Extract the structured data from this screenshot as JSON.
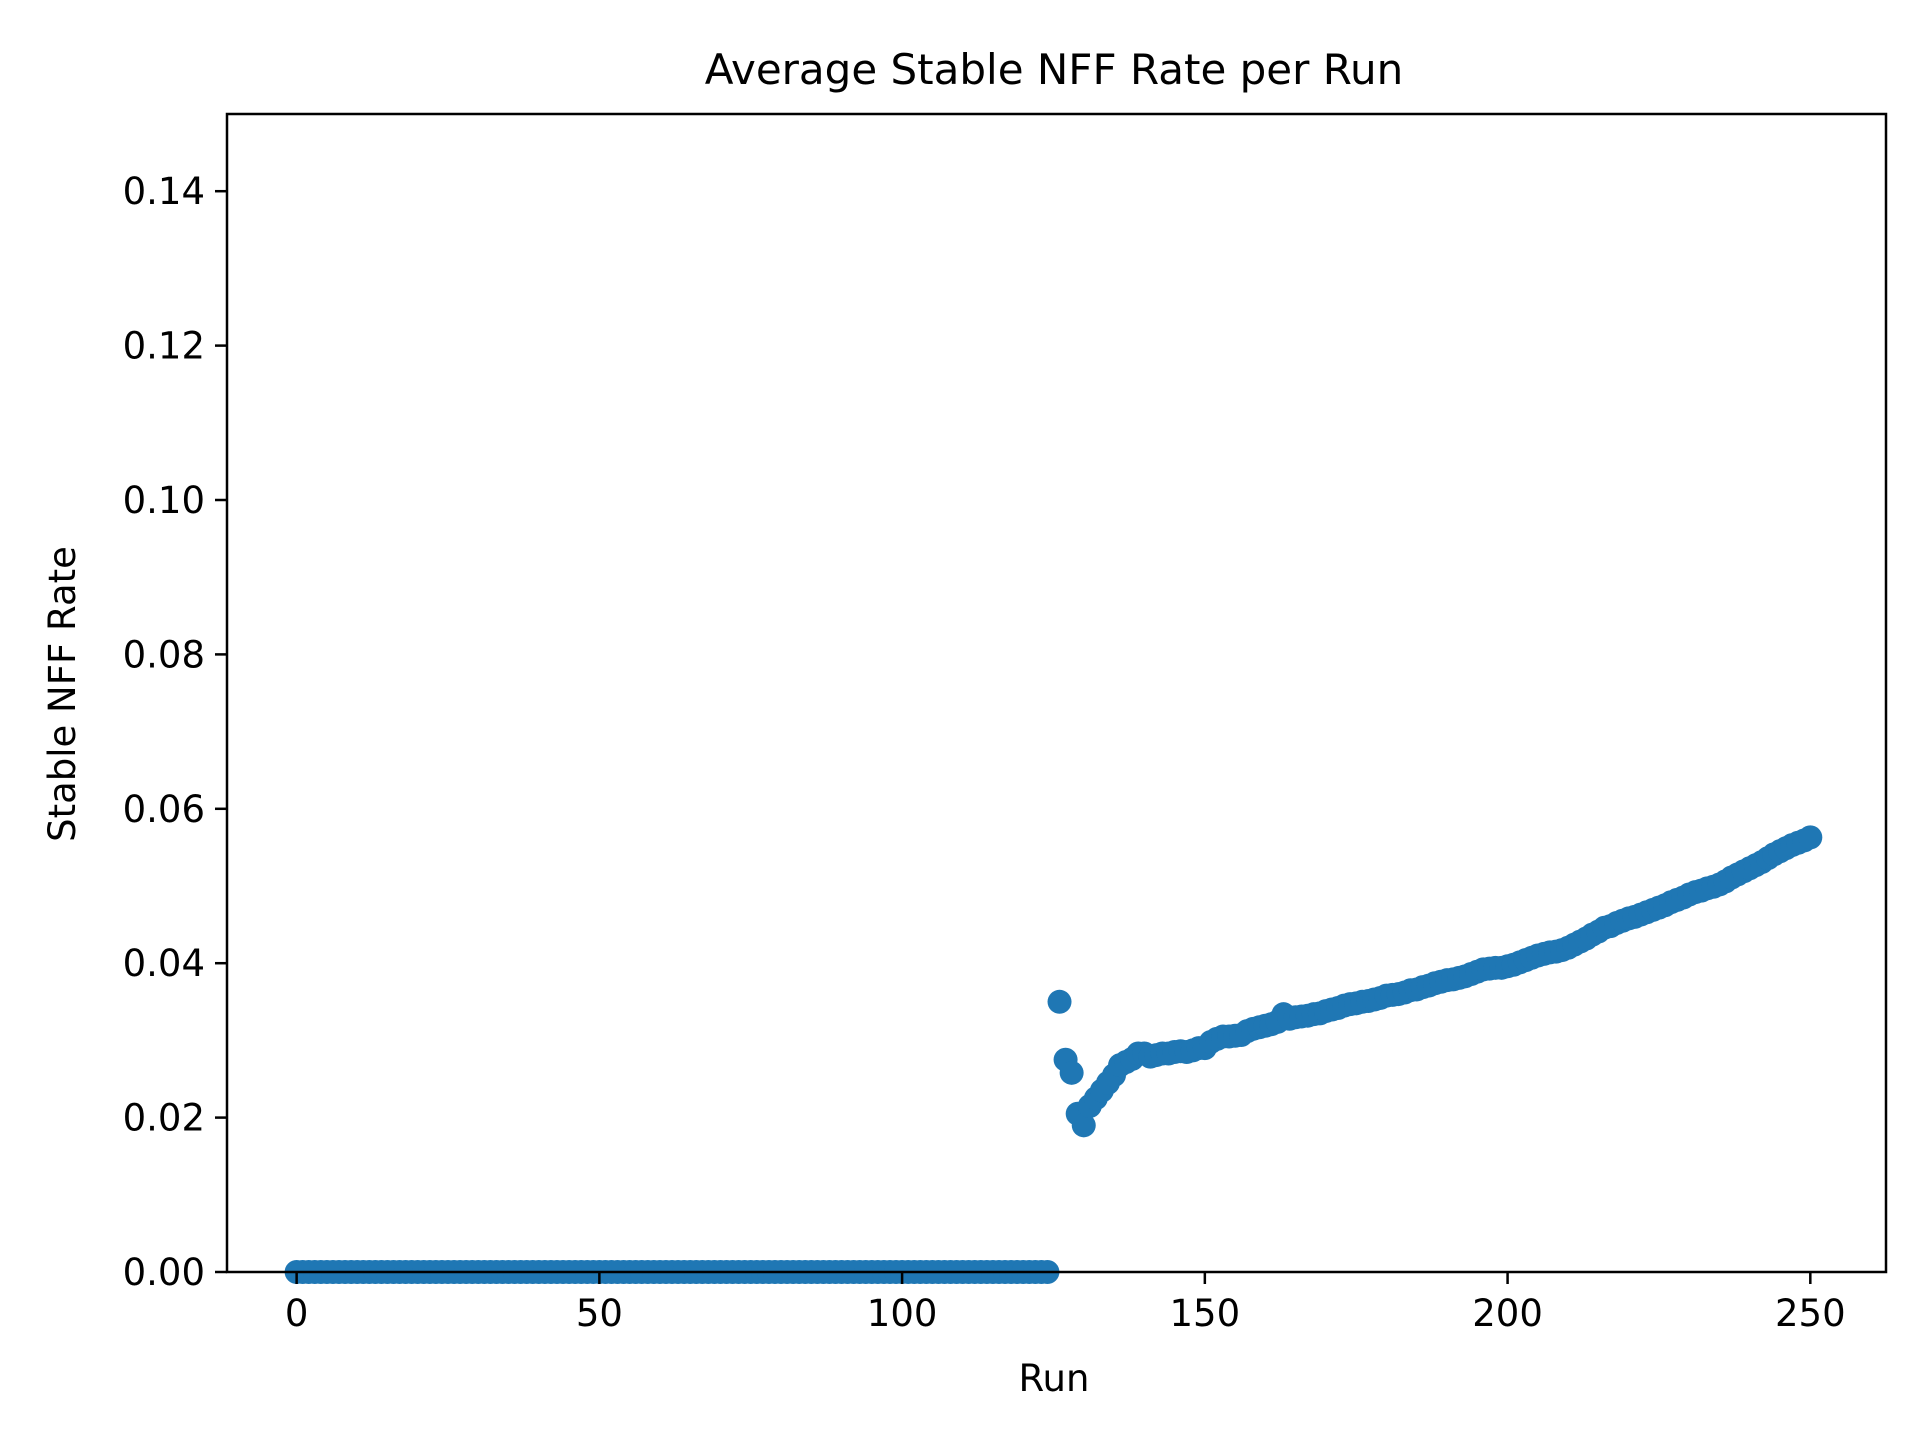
{
  "chart_data": {
    "type": "scatter",
    "title": "Average Stable NFF Rate per Run",
    "xlabel": "Run",
    "ylabel": "Stable NFF Rate",
    "xlim": [
      -11.5,
      262.5
    ],
    "ylim": [
      0,
      0.15
    ],
    "x_ticks": [
      0,
      50,
      100,
      150,
      200,
      250
    ],
    "x_tick_labels": [
      "0",
      "50",
      "100",
      "150",
      "200",
      "250"
    ],
    "y_ticks": [
      0,
      0.02,
      0.04,
      0.06,
      0.08,
      0.1,
      0.12,
      0.14
    ],
    "y_tick_labels": [
      "0.00",
      "0.02",
      "0.04",
      "0.06",
      "0.08",
      "0.10",
      "0.12",
      "0.14"
    ],
    "grid": false,
    "marker_color": "#1f77b4",
    "series": [
      {
        "zero_runs": [
          0,
          124
        ],
        "x": [
          126,
          127,
          128,
          129,
          130,
          131,
          132,
          133,
          134,
          135,
          136,
          137,
          138,
          139,
          140,
          141,
          142,
          143,
          144,
          145,
          146,
          147,
          148,
          149,
          150,
          151,
          152,
          153,
          154,
          155,
          156,
          157,
          158,
          159,
          160,
          161,
          162,
          163,
          164,
          165,
          166,
          167,
          168,
          169,
          170,
          171,
          172,
          173,
          174,
          175,
          176,
          177,
          178,
          179,
          180,
          181,
          182,
          183,
          184,
          185,
          186,
          187,
          188,
          189,
          190,
          191,
          192,
          193,
          194,
          195,
          196,
          197,
          198,
          199,
          200,
          201,
          202,
          203,
          204,
          205,
          206,
          207,
          208,
          209,
          210,
          211,
          212,
          213,
          214,
          215,
          216,
          217,
          218,
          219,
          220,
          221,
          222,
          223,
          224,
          225,
          226,
          227,
          228,
          229,
          230,
          231,
          232,
          233,
          234,
          235,
          236,
          237,
          238,
          239,
          240,
          241,
          242,
          243,
          244,
          245,
          246,
          247,
          248,
          249,
          250
        ],
        "y": [
          0.035,
          0.0275,
          0.0258,
          0.0205,
          0.019,
          0.0215,
          0.0225,
          0.0235,
          0.0245,
          0.0255,
          0.0268,
          0.0272,
          0.0276,
          0.0283,
          0.0283,
          0.0279,
          0.0281,
          0.0283,
          0.0283,
          0.0285,
          0.0286,
          0.0285,
          0.0287,
          0.029,
          0.029,
          0.0298,
          0.0302,
          0.0305,
          0.0305,
          0.0306,
          0.0307,
          0.0312,
          0.0315,
          0.0317,
          0.0319,
          0.0321,
          0.0324,
          0.0334,
          0.0328,
          0.033,
          0.0331,
          0.0332,
          0.0334,
          0.0335,
          0.0338,
          0.034,
          0.0342,
          0.0345,
          0.0347,
          0.0348,
          0.035,
          0.0351,
          0.0353,
          0.0355,
          0.0358,
          0.0359,
          0.036,
          0.0362,
          0.0365,
          0.0366,
          0.0369,
          0.0371,
          0.0374,
          0.0376,
          0.0378,
          0.0379,
          0.0381,
          0.0383,
          0.0386,
          0.0389,
          0.0392,
          0.0393,
          0.0394,
          0.0394,
          0.0396,
          0.0398,
          0.0401,
          0.0404,
          0.0407,
          0.041,
          0.0412,
          0.0414,
          0.0415,
          0.0417,
          0.042,
          0.0424,
          0.0428,
          0.0432,
          0.0437,
          0.0441,
          0.0446,
          0.0448,
          0.0452,
          0.0455,
          0.0458,
          0.046,
          0.0463,
          0.0466,
          0.0469,
          0.0472,
          0.0475,
          0.0479,
          0.0482,
          0.0485,
          0.0489,
          0.0492,
          0.0494,
          0.0497,
          0.0499,
          0.0502,
          0.0506,
          0.0511,
          0.0515,
          0.0519,
          0.0523,
          0.0527,
          0.0531,
          0.0536,
          0.0541,
          0.0545,
          0.0549,
          0.0553,
          0.0556,
          0.0559,
          0.0563
        ]
      }
    ]
  }
}
